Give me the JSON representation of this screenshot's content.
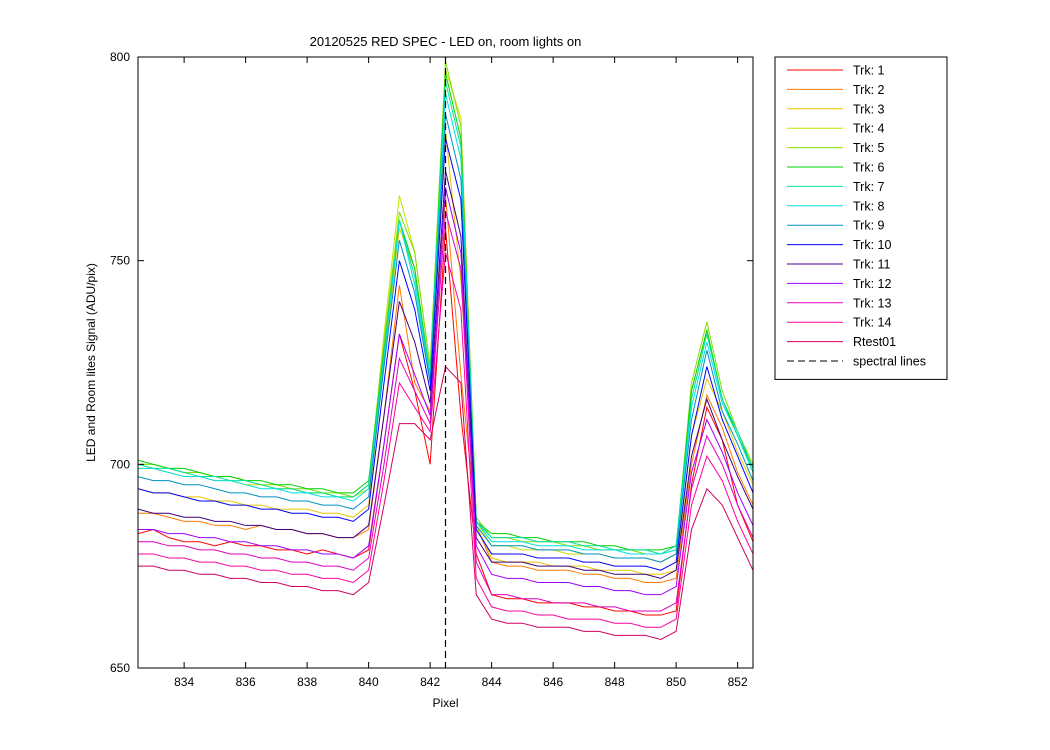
{
  "chart_data": {
    "type": "line",
    "title": "20120525 RED SPEC - LED on, room lights on",
    "xlabel": "Pixel",
    "ylabel": "LED and Room lites Signal (ADU/pix)",
    "xlim": [
      832.5,
      852.5
    ],
    "ylim": [
      650,
      800
    ],
    "xticks": [
      834,
      836,
      838,
      840,
      842,
      844,
      846,
      848,
      850,
      852
    ],
    "yticks": [
      650,
      700,
      750,
      800
    ],
    "grid": false,
    "legend_position": "outside-right",
    "x": [
      832.5,
      833,
      833.5,
      834,
      834.5,
      835,
      835.5,
      836,
      836.5,
      837,
      837.5,
      838,
      838.5,
      839,
      839.5,
      840,
      840.5,
      841,
      841.5,
      842,
      842.5,
      843,
      843.5,
      844,
      844.5,
      845,
      845.5,
      846,
      846.5,
      847,
      847.5,
      848,
      848.5,
      849,
      849.5,
      850,
      850.5,
      851,
      851.5,
      852,
      852.5
    ],
    "series": [
      {
        "name": "Trk: 1",
        "color": "#ff0000",
        "values": [
          683,
          684,
          682,
          681,
          681,
          680,
          681,
          680,
          680,
          679,
          679,
          678,
          679,
          678,
          677,
          679,
          705,
          732,
          718,
          700,
          758,
          712,
          678,
          668,
          667,
          667,
          666,
          666,
          666,
          665,
          665,
          664,
          664,
          663,
          663,
          664,
          695,
          714,
          706,
          690,
          681
        ]
      },
      {
        "name": "Trk: 2",
        "color": "#ff7a00",
        "values": [
          688,
          688,
          687,
          686,
          686,
          685,
          685,
          684,
          685,
          684,
          684,
          683,
          683,
          682,
          682,
          684,
          712,
          744,
          720,
          713,
          766,
          722,
          685,
          676,
          675,
          675,
          674,
          674,
          674,
          673,
          673,
          672,
          672,
          671,
          671,
          672,
          700,
          717,
          709,
          698,
          690
        ]
      },
      {
        "name": "Trk: 3",
        "color": "#e8c800",
        "values": [
          694,
          693,
          693,
          692,
          692,
          691,
          691,
          690,
          690,
          689,
          689,
          689,
          688,
          688,
          687,
          690,
          725,
          758,
          748,
          720,
          782,
          745,
          685,
          677,
          676,
          676,
          676,
          675,
          675,
          675,
          674,
          674,
          674,
          673,
          673,
          674,
          707,
          721,
          713,
          703,
          695
        ]
      },
      {
        "name": "Trk: 4",
        "color": "#c8e000",
        "values": [
          699,
          699,
          698,
          697,
          697,
          696,
          696,
          695,
          695,
          694,
          694,
          693,
          693,
          692,
          692,
          694,
          732,
          766,
          752,
          724,
          797,
          785,
          686,
          680,
          680,
          679,
          679,
          679,
          678,
          678,
          678,
          677,
          677,
          677,
          676,
          678,
          718,
          733,
          716,
          707,
          698
        ]
      },
      {
        "name": "Trk: 5",
        "color": "#80e000",
        "values": [
          700,
          700,
          699,
          698,
          698,
          697,
          697,
          696,
          695,
          695,
          694,
          694,
          693,
          693,
          692,
          695,
          730,
          762,
          752,
          724,
          799,
          783,
          687,
          682,
          682,
          681,
          681,
          681,
          680,
          680,
          679,
          679,
          679,
          678,
          678,
          679,
          720,
          735,
          718,
          708,
          700
        ]
      },
      {
        "name": "Trk: 6",
        "color": "#00d000",
        "values": [
          701,
          700,
          699,
          699,
          698,
          697,
          697,
          696,
          696,
          695,
          695,
          694,
          694,
          693,
          693,
          696,
          728,
          760,
          748,
          722,
          796,
          780,
          686,
          683,
          683,
          682,
          682,
          681,
          681,
          681,
          680,
          680,
          679,
          679,
          679,
          680,
          718,
          733,
          716,
          707,
          699
        ]
      },
      {
        "name": "Trk: 7",
        "color": "#00e0a0",
        "values": [
          700,
          699,
          699,
          698,
          697,
          697,
          696,
          696,
          695,
          694,
          694,
          693,
          693,
          692,
          692,
          695,
          727,
          760,
          746,
          722,
          794,
          778,
          686,
          682,
          682,
          682,
          681,
          681,
          681,
          680,
          680,
          679,
          679,
          679,
          678,
          680,
          716,
          732,
          716,
          708,
          699
        ]
      },
      {
        "name": "Trk: 8",
        "color": "#00e0e0",
        "values": [
          699,
          699,
          698,
          697,
          697,
          696,
          696,
          695,
          694,
          694,
          693,
          693,
          692,
          692,
          691,
          694,
          726,
          760,
          744,
          721,
          791,
          775,
          686,
          681,
          681,
          681,
          680,
          680,
          680,
          679,
          679,
          679,
          678,
          678,
          678,
          679,
          714,
          730,
          715,
          707,
          698
        ]
      },
      {
        "name": "Trk: 9",
        "color": "#0090c0",
        "values": [
          697,
          696,
          696,
          695,
          695,
          694,
          693,
          693,
          692,
          692,
          691,
          691,
          690,
          690,
          689,
          692,
          724,
          755,
          742,
          720,
          786,
          770,
          685,
          680,
          680,
          680,
          679,
          679,
          679,
          678,
          678,
          677,
          677,
          677,
          676,
          678,
          711,
          728,
          713,
          705,
          696
        ]
      },
      {
        "name": "Trk: 10",
        "color": "#0000ff",
        "values": [
          694,
          693,
          693,
          692,
          691,
          691,
          690,
          690,
          689,
          689,
          688,
          688,
          687,
          687,
          686,
          689,
          720,
          750,
          738,
          718,
          780,
          765,
          684,
          678,
          678,
          678,
          677,
          677,
          677,
          676,
          676,
          675,
          675,
          675,
          674,
          676,
          707,
          724,
          711,
          702,
          693
        ]
      },
      {
        "name": "Trk: 11",
        "color": "#400080",
        "values": [
          689,
          688,
          688,
          687,
          687,
          686,
          686,
          685,
          685,
          684,
          684,
          683,
          683,
          682,
          682,
          685,
          712,
          740,
          730,
          715,
          772,
          756,
          682,
          676,
          676,
          676,
          675,
          675,
          675,
          674,
          674,
          673,
          673,
          673,
          672,
          674,
          702,
          716,
          706,
          697,
          689
        ]
      },
      {
        "name": "Trk: 12",
        "color": "#a000ff",
        "values": [
          684,
          684,
          683,
          683,
          682,
          682,
          681,
          681,
          680,
          680,
          679,
          679,
          678,
          678,
          677,
          680,
          705,
          732,
          722,
          712,
          768,
          752,
          680,
          673,
          672,
          672,
          671,
          671,
          671,
          670,
          670,
          669,
          669,
          668,
          668,
          670,
          698,
          711,
          703,
          693,
          685
        ]
      },
      {
        "name": "Trk: 13",
        "color": "#e000c0",
        "values": [
          681,
          681,
          680,
          680,
          679,
          679,
          678,
          678,
          677,
          677,
          676,
          676,
          675,
          675,
          674,
          677,
          700,
          726,
          718,
          710,
          762,
          748,
          676,
          668,
          668,
          667,
          667,
          666,
          666,
          666,
          665,
          665,
          664,
          664,
          664,
          666,
          694,
          707,
          700,
          690,
          682
        ]
      },
      {
        "name": "Trk: 14",
        "color": "#ff00a0",
        "values": [
          678,
          678,
          677,
          677,
          676,
          676,
          675,
          675,
          674,
          674,
          673,
          673,
          672,
          672,
          671,
          674,
          696,
          720,
          714,
          708,
          752,
          738,
          672,
          665,
          664,
          664,
          663,
          663,
          662,
          662,
          662,
          661,
          661,
          660,
          660,
          662,
          690,
          702,
          696,
          686,
          678
        ]
      },
      {
        "name": "Rtest01",
        "color": "#d00060",
        "values": [
          675,
          675,
          674,
          674,
          673,
          673,
          672,
          672,
          671,
          671,
          670,
          670,
          669,
          669,
          668,
          671,
          690,
          710,
          710,
          706,
          724,
          720,
          668,
          662,
          661,
          661,
          660,
          660,
          660,
          659,
          659,
          658,
          658,
          658,
          657,
          659,
          684,
          694,
          690,
          682,
          674
        ]
      },
      {
        "name": "spectral lines",
        "color": "#000000",
        "dashed": true,
        "vline_x": 842.5
      }
    ]
  }
}
